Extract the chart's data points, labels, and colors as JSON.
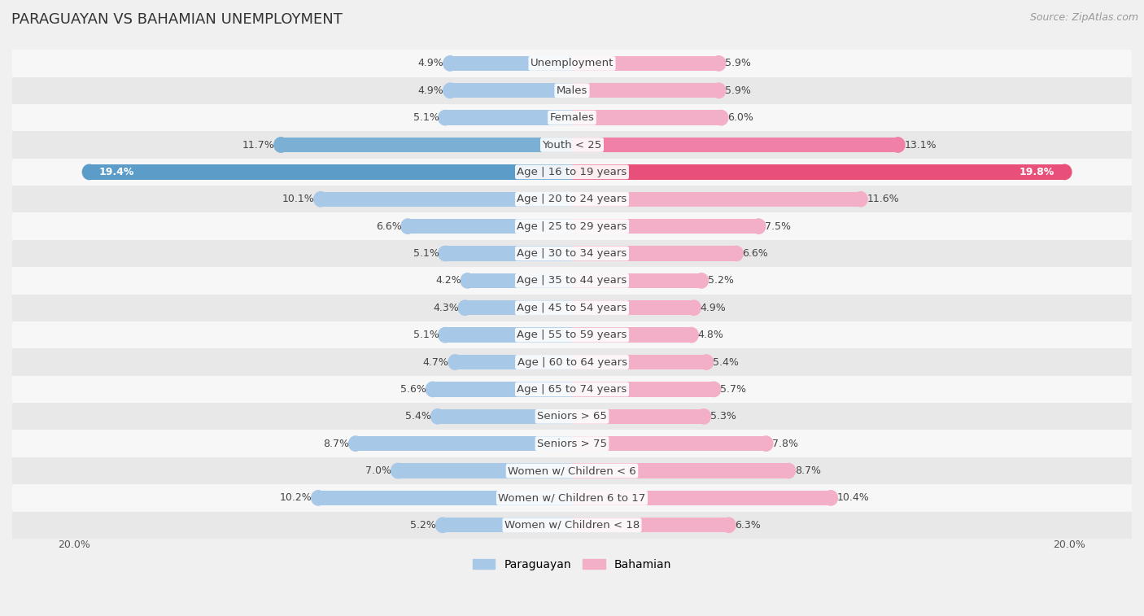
{
  "title": "PARAGUAYAN VS BAHAMIAN UNEMPLOYMENT",
  "source": "Source: ZipAtlas.com",
  "categories": [
    "Unemployment",
    "Males",
    "Females",
    "Youth < 25",
    "Age | 16 to 19 years",
    "Age | 20 to 24 years",
    "Age | 25 to 29 years",
    "Age | 30 to 34 years",
    "Age | 35 to 44 years",
    "Age | 45 to 54 years",
    "Age | 55 to 59 years",
    "Age | 60 to 64 years",
    "Age | 65 to 74 years",
    "Seniors > 65",
    "Seniors > 75",
    "Women w/ Children < 6",
    "Women w/ Children 6 to 17",
    "Women w/ Children < 18"
  ],
  "paraguayan": [
    4.9,
    4.9,
    5.1,
    11.7,
    19.4,
    10.1,
    6.6,
    5.1,
    4.2,
    4.3,
    5.1,
    4.7,
    5.6,
    5.4,
    8.7,
    7.0,
    10.2,
    5.2
  ],
  "bahamian": [
    5.9,
    5.9,
    6.0,
    13.1,
    19.8,
    11.6,
    7.5,
    6.6,
    5.2,
    4.9,
    4.8,
    5.4,
    5.7,
    5.3,
    7.8,
    8.7,
    10.4,
    6.3
  ],
  "paraguayan_color_normal": "#a8c8e8",
  "paraguayan_color_youth": "#7bafd4",
  "paraguayan_color_age1619": "#5b9cc9",
  "bahamian_color_normal": "#f4afc8",
  "bahamian_color_youth": "#f080a8",
  "bahamian_color_age1619": "#e8507a",
  "bg_color": "#f0f0f0",
  "row_bg_even": "#f7f7f7",
  "row_bg_odd": "#e8e8e8",
  "max_val": 20.0,
  "bar_height": 0.55,
  "label_fontsize": 9.5,
  "value_fontsize": 9.0,
  "title_fontsize": 13,
  "source_fontsize": 9,
  "legend_fontsize": 10,
  "legend_paraguayan": "Paraguayan",
  "legend_bahamian": "Bahamian"
}
